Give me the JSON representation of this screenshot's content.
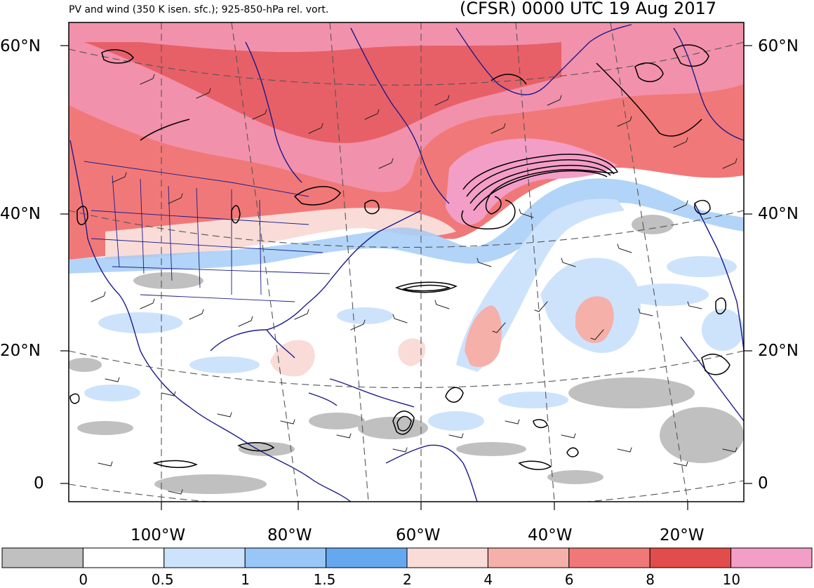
{
  "titles": {
    "left": "PV and wind (350 K isen. sfc.); 925-850-hPa rel. vort.",
    "right": "(CFSR) 0000 UTC 19 Aug 2017"
  },
  "lat_labels": [
    "60°N",
    "40°N",
    "20°N",
    "0"
  ],
  "lon_labels": [
    "100°W",
    "80°W",
    "60°W",
    "40°W",
    "20°W"
  ],
  "colorbar": {
    "colors": [
      "#c0c0c0",
      "#ffffff",
      "#cde3fb",
      "#98c6f6",
      "#66a8f0",
      "#f9dcd7",
      "#f5b0a9",
      "#f17878",
      "#e34c4c",
      "#f39ec6"
    ],
    "labels": [
      "0",
      "0.5",
      "1",
      "1.5",
      "2",
      "4",
      "6",
      "8",
      "10"
    ]
  }
}
